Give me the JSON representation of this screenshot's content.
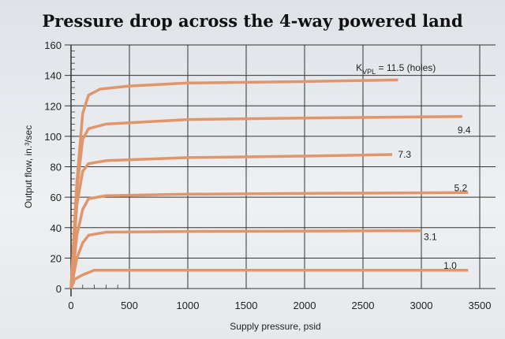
{
  "chart_data": {
    "type": "line",
    "title": "Pressure drop across the 4-way powered land",
    "xlabel": "Supply pressure, psid",
    "ylabel": "Output flow, in.³/sec",
    "xlim": [
      0,
      3500
    ],
    "ylim": [
      0,
      160
    ],
    "xticks": [
      "0",
      "500",
      "1000",
      "1500",
      "2000",
      "2500",
      "3000",
      "3500"
    ],
    "yticks": [
      "0",
      "20",
      "40",
      "60",
      "80",
      "100",
      "120",
      "140",
      "160"
    ],
    "grid": true,
    "legend_prefix": "K",
    "legend_sub": "VPL",
    "legend_suffix": " = 11.5 (holes)",
    "line_color": "#e0956a",
    "series": [
      {
        "name": "11.5",
        "points": [
          [
            0,
            0
          ],
          [
            50,
            70
          ],
          [
            100,
            115
          ],
          [
            150,
            127
          ],
          [
            250,
            131
          ],
          [
            500,
            133
          ],
          [
            1000,
            135
          ],
          [
            2000,
            136
          ],
          [
            2800,
            137
          ]
        ]
      },
      {
        "name": "9.4",
        "points": [
          [
            0,
            0
          ],
          [
            50,
            65
          ],
          [
            100,
            98
          ],
          [
            150,
            105
          ],
          [
            300,
            108
          ],
          [
            1000,
            111
          ],
          [
            2000,
            112
          ],
          [
            3350,
            113
          ]
        ]
      },
      {
        "name": "7.3",
        "points": [
          [
            0,
            0
          ],
          [
            50,
            55
          ],
          [
            100,
            77
          ],
          [
            150,
            82
          ],
          [
            300,
            84
          ],
          [
            1000,
            86
          ],
          [
            2000,
            87
          ],
          [
            2750,
            88
          ]
        ]
      },
      {
        "name": "5.2",
        "points": [
          [
            0,
            0
          ],
          [
            50,
            35
          ],
          [
            100,
            52
          ],
          [
            150,
            59
          ],
          [
            300,
            61
          ],
          [
            1000,
            62
          ],
          [
            2000,
            62.5
          ],
          [
            3400,
            63
          ]
        ]
      },
      {
        "name": "3.1",
        "points": [
          [
            0,
            0
          ],
          [
            50,
            20
          ],
          [
            100,
            30
          ],
          [
            150,
            35
          ],
          [
            300,
            37
          ],
          [
            1000,
            37.5
          ],
          [
            3000,
            38
          ]
        ]
      },
      {
        "name": "1.0",
        "points": [
          [
            0,
            0
          ],
          [
            30,
            6
          ],
          [
            100,
            9
          ],
          [
            200,
            12
          ],
          [
            500,
            12
          ],
          [
            3400,
            12
          ]
        ]
      }
    ],
    "labels": [
      "9.4",
      "7.3",
      "5.2",
      "3.1",
      "1.0"
    ]
  }
}
